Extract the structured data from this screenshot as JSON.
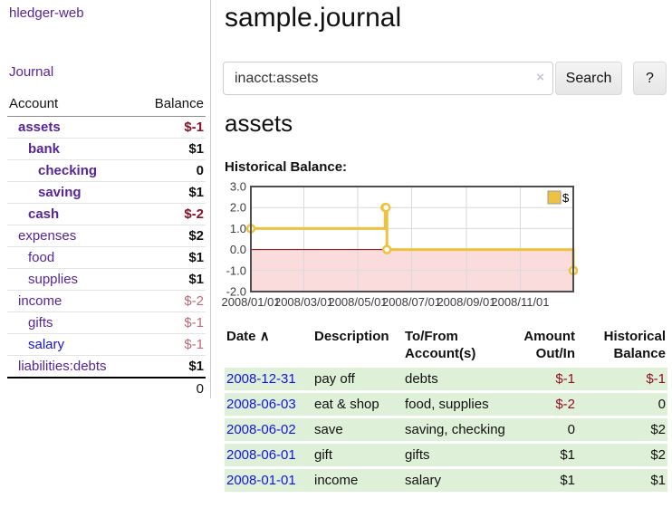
{
  "app": {
    "brand": "hledger-web",
    "nav_journal": "Journal"
  },
  "sidebar": {
    "table": {
      "headers": [
        "Account",
        "Balance"
      ],
      "rows": [
        {
          "account": "assets",
          "balance": "$-1",
          "depth": 1,
          "name_bold": true,
          "name_color": "purple",
          "bal_class": "neg-bold"
        },
        {
          "account": "bank",
          "balance": "$1",
          "depth": 2,
          "name_bold": true,
          "name_color": "purple",
          "bal_class": "pos-bold"
        },
        {
          "account": "checking",
          "balance": "0",
          "depth": 3,
          "name_bold": true,
          "name_color": "purple",
          "bal_class": "pos-bold"
        },
        {
          "account": "saving",
          "balance": "$1",
          "depth": 3,
          "name_bold": true,
          "name_color": "purple",
          "bal_class": "pos-bold"
        },
        {
          "account": "cash",
          "balance": "$-2",
          "depth": 2,
          "name_bold": true,
          "name_color": "purple",
          "bal_class": "neg-bold"
        },
        {
          "account": "expenses",
          "balance": "$2",
          "depth": 1,
          "name_bold": false,
          "name_color": "purple",
          "bal_class": "pos-bold"
        },
        {
          "account": "food",
          "balance": "$1",
          "depth": 2,
          "name_bold": false,
          "name_color": "purple",
          "bal_class": "pos-bold"
        },
        {
          "account": "supplies",
          "balance": "$1",
          "depth": 2,
          "name_bold": false,
          "name_color": "purple",
          "bal_class": "pos-bold"
        },
        {
          "account": "income",
          "balance": "$-2",
          "depth": 1,
          "name_bold": false,
          "name_color": "purple",
          "bal_class": "neg-soft"
        },
        {
          "account": "gifts",
          "balance": "$-1",
          "depth": 2,
          "name_bold": false,
          "name_color": "purple",
          "bal_class": "neg-soft"
        },
        {
          "account": "salary",
          "balance": "$-1",
          "depth": 2,
          "name_bold": false,
          "name_color": "blue",
          "bal_class": "neg-soft"
        },
        {
          "account": "liabilities:debts",
          "balance": "$1",
          "depth": 1,
          "name_bold": false,
          "name_color": "purple",
          "bal_class": "pos-bold"
        }
      ],
      "total": "0"
    }
  },
  "main": {
    "title": "sample.journal",
    "search": {
      "value": "inacct:assets",
      "clear_icon": "×",
      "button_label": "Search",
      "help_label": "?"
    },
    "account_heading": "assets",
    "chart_label": "Historical Balance:"
  },
  "chart_data": {
    "type": "line",
    "step": true,
    "title": "Historical Balance",
    "xlim": [
      "2008-01-01",
      "2008-12-31"
    ],
    "ylim": [
      -2,
      3
    ],
    "y_ticks": [
      {
        "label": "3.0",
        "v": 3
      },
      {
        "label": "2.0",
        "v": 2
      },
      {
        "label": "1.0",
        "v": 1
      },
      {
        "label": "0.0",
        "v": 0
      },
      {
        "label": "-1.0",
        "v": -1
      },
      {
        "label": "-2.0",
        "v": -2
      }
    ],
    "x_ticks": [
      {
        "label": "2008/01/01",
        "date": "2008-01-01"
      },
      {
        "label": "2008/03/01",
        "date": "2008-03-01"
      },
      {
        "label": "2008/05/01",
        "date": "2008-05-01"
      },
      {
        "label": "2008/07/01",
        "date": "2008-07-01"
      },
      {
        "label": "2008/09/01",
        "date": "2008-09-01"
      },
      {
        "label": "2008/11/01",
        "date": "2008-11-01"
      }
    ],
    "series": [
      {
        "name": "$",
        "color": "#edc240",
        "points": [
          {
            "x": "2008-01-01",
            "y": 1
          },
          {
            "x": "2008-06-01",
            "y": 2
          },
          {
            "x": "2008-06-02",
            "y": 2
          },
          {
            "x": "2008-06-03",
            "y": 0
          },
          {
            "x": "2008-12-31",
            "y": -1
          }
        ]
      }
    ],
    "legend": {
      "label": "$",
      "position": "top-right"
    },
    "grid": true,
    "colors": {
      "grid": "#d9d9d9",
      "border": "#4d4d4d",
      "zero_line": "#8b0000",
      "negative_region": "#fbdcdc",
      "tick_text": "#3c3c3c"
    }
  },
  "register": {
    "headers": [
      "Date",
      "Description",
      "To/From Account(s)",
      "Amount Out/In",
      "Historical Balance"
    ],
    "sort_icon": "∧",
    "rows": [
      {
        "date": "2008-12-31",
        "description": "pay off",
        "accounts": "debts",
        "amount": "$-1",
        "balance": "$-1"
      },
      {
        "date": "2008-06-03",
        "description": "eat & shop",
        "accounts": "food, supplies",
        "amount": "$-2",
        "balance": "0"
      },
      {
        "date": "2008-06-02",
        "description": "save",
        "accounts": "saving, checking",
        "amount": "0",
        "balance": "$2"
      },
      {
        "date": "2008-06-01",
        "description": "gift",
        "accounts": "gifts",
        "amount": "$1",
        "balance": "$2"
      },
      {
        "date": "2008-01-01",
        "description": "income",
        "accounts": "salary",
        "amount": "$1",
        "balance": "$1"
      }
    ]
  }
}
